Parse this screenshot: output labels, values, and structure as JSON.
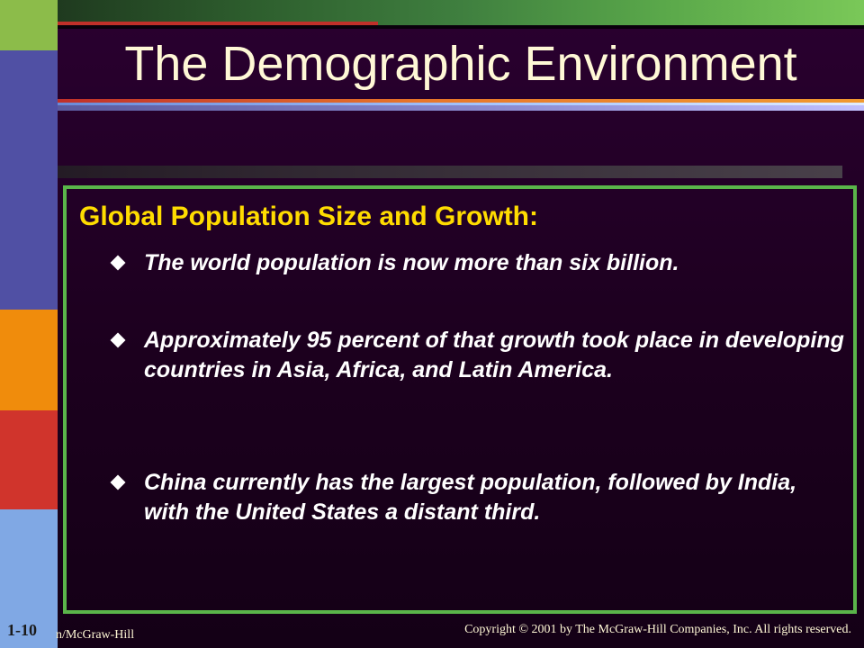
{
  "slide": {
    "title": "The Demographic Environment",
    "heading": "Global Population Size and Growth:",
    "bullets": [
      "The world population is now more than six billion.",
      "Approximately 95 percent of that growth took place in developing countries in Asia, Africa, and Latin America.",
      "China currently has the largest population, followed by India, with the United States a distant third."
    ]
  },
  "footer": {
    "slide_number": "1-10",
    "publisher": "n/McGraw-Hill",
    "copyright": "Copyright © 2001 by The McGraw-Hill Companies, Inc.  All rights reserved."
  },
  "colors": {
    "background": "#1e0020",
    "title": "#fff8d6",
    "heading": "#ffdc00",
    "box_border": "#5ab54a"
  }
}
